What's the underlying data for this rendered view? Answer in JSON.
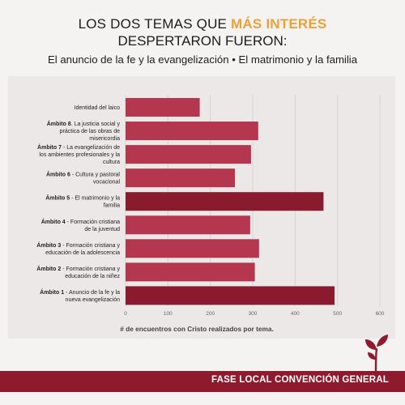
{
  "header": {
    "title_part1": "LOS DOS TEMAS QUE ",
    "title_highlight": "MÁS INTERÉS",
    "title_line2": "DESPERTARON FUERON:",
    "subtitle": "El anuncio de la fe y la evangelización • El matrimonio y la familia"
  },
  "footer": {
    "label": "FASE LOCAL CONVENCIÓN GENERAL"
  },
  "colors": {
    "bar": "#b5364f",
    "bar_highlight": "#8a1b2e",
    "accent": "#e9a23b",
    "footer": "#8d1b2d"
  },
  "chart_data": {
    "type": "bar",
    "orientation": "horizontal",
    "xlabel": "# de encuentros con Cristo realizados por tema.",
    "xlim": [
      0,
      600
    ],
    "xticks": [
      0,
      100,
      200,
      300,
      400,
      500,
      600
    ],
    "grid": true,
    "categories": [
      {
        "bold": "",
        "text": "Identidad del laico",
        "value": 175
      },
      {
        "bold": "Ámbito 8",
        "text": ". La justicia social y práctica de las obras de misericordia",
        "value": 313
      },
      {
        "bold": "Ámbito 7",
        "text": " - La evangelización de los ambientes profesionales y la cultura",
        "value": 296
      },
      {
        "bold": "Ámbito 6",
        "text": " - Cultura y pastoral vocacional",
        "value": 258
      },
      {
        "bold": "Ámbito 5",
        "text": " - El matrimonio y la familia",
        "value": 467,
        "highlight": true
      },
      {
        "bold": "Ámbito 4",
        "text": " - Formación cristiana de la juventud",
        "value": 294
      },
      {
        "bold": "Ámbito 3",
        "text": " - Formación cristiana y educación de la adolescencia",
        "value": 315
      },
      {
        "bold": "Ámbito 2",
        "text": " - Formación cristiana y educación de la niñez",
        "value": 305
      },
      {
        "bold": "Ámbito 1",
        "text": " - Anuncio de la fe y la nueva evangelización",
        "value": 493,
        "highlight": true
      }
    ]
  }
}
